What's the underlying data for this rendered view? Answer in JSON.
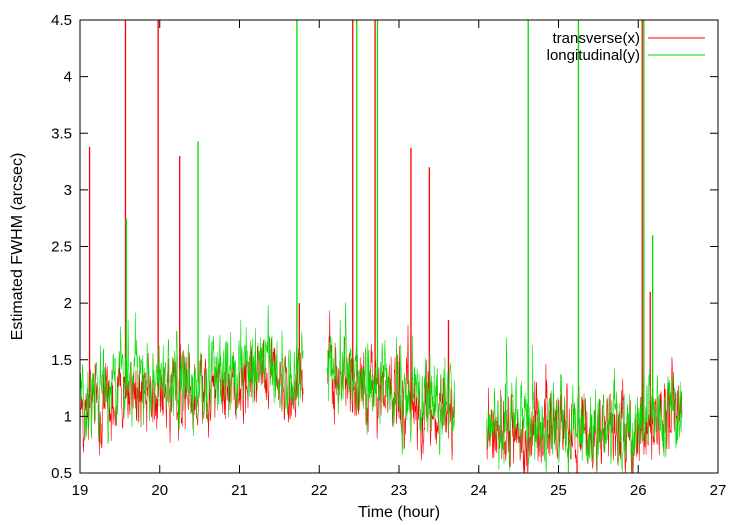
{
  "chart_data": {
    "type": "line",
    "title": "",
    "xlabel": "Time (hour)",
    "ylabel": "Estimated FWHM (arcsec)",
    "xlim": [
      19,
      27
    ],
    "ylim": [
      0.5,
      4.5
    ],
    "xticks": [
      19,
      20,
      21,
      22,
      23,
      24,
      25,
      26,
      27
    ],
    "yticks": [
      0.5,
      1,
      1.5,
      2,
      2.5,
      3,
      3.5,
      4,
      4.5
    ],
    "ytick_labels": [
      "0.5",
      "1",
      "1.5",
      "2",
      "2.5",
      "3",
      "3.5",
      "4",
      "4.5"
    ],
    "grid": false,
    "legend_position": "top-right",
    "segments": [
      [
        19.0,
        21.8
      ],
      [
        22.1,
        23.7
      ],
      [
        24.1,
        26.55
      ]
    ],
    "series": [
      {
        "name": "transverse(x)",
        "color": "#ff0000",
        "level_points": [
          [
            19.0,
            1.05
          ],
          [
            19.5,
            1.15
          ],
          [
            20.0,
            1.2
          ],
          [
            20.5,
            1.25
          ],
          [
            21.0,
            1.3
          ],
          [
            21.4,
            1.35
          ],
          [
            21.8,
            1.35
          ],
          [
            22.1,
            1.35
          ],
          [
            22.5,
            1.3
          ],
          [
            23.0,
            1.15
          ],
          [
            23.5,
            1.05
          ],
          [
            23.7,
            1.0
          ],
          [
            24.1,
            0.9
          ],
          [
            24.5,
            0.85
          ],
          [
            25.0,
            0.9
          ],
          [
            25.5,
            0.85
          ],
          [
            26.0,
            0.85
          ],
          [
            26.55,
            1.05
          ]
        ],
        "spikes": [
          [
            19.12,
            3.38
          ],
          [
            19.57,
            4.5
          ],
          [
            19.98,
            4.5
          ],
          [
            20.25,
            3.3
          ],
          [
            21.75,
            2.0
          ],
          [
            22.42,
            4.5
          ],
          [
            22.7,
            4.5
          ],
          [
            23.15,
            3.37
          ],
          [
            23.38,
            3.2
          ],
          [
            23.62,
            1.85
          ],
          [
            26.05,
            4.5
          ],
          [
            26.15,
            2.1
          ]
        ]
      },
      {
        "name": "longitudinal(y)",
        "color": "#00dd00",
        "level_points": [
          [
            19.0,
            1.15
          ],
          [
            19.5,
            1.25
          ],
          [
            20.0,
            1.3
          ],
          [
            20.5,
            1.3
          ],
          [
            21.0,
            1.4
          ],
          [
            21.4,
            1.45
          ],
          [
            21.8,
            1.4
          ],
          [
            22.1,
            1.45
          ],
          [
            22.5,
            1.35
          ],
          [
            23.0,
            1.2
          ],
          [
            23.5,
            1.1
          ],
          [
            23.7,
            1.05
          ],
          [
            24.1,
            0.95
          ],
          [
            24.5,
            0.9
          ],
          [
            25.0,
            0.95
          ],
          [
            25.5,
            0.9
          ],
          [
            26.0,
            0.9
          ],
          [
            26.55,
            1.15
          ]
        ],
        "spikes": [
          [
            19.58,
            2.75
          ],
          [
            20.48,
            3.43
          ],
          [
            21.72,
            4.5
          ],
          [
            22.47,
            4.5
          ],
          [
            22.73,
            4.5
          ],
          [
            24.62,
            4.5
          ],
          [
            25.25,
            4.5
          ],
          [
            26.07,
            4.5
          ],
          [
            26.18,
            2.6
          ]
        ]
      }
    ]
  }
}
